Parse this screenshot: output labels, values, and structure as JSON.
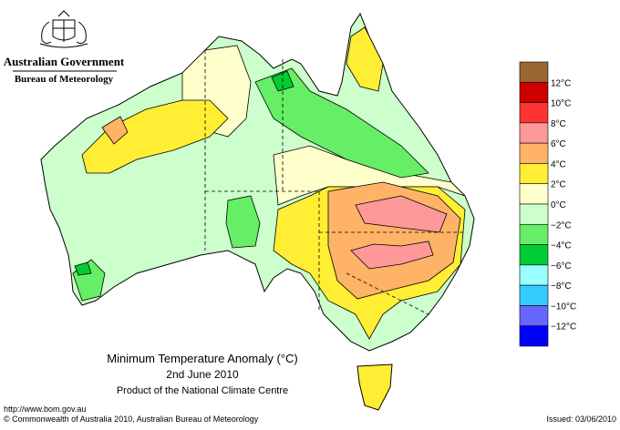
{
  "header": {
    "agency": "Australian Government",
    "bureau": "Bureau of Meteorology"
  },
  "map": {
    "title": "Minimum Temperature Anomaly (°C)",
    "date": "2nd June 2010",
    "product": "Product of the National Climate Centre"
  },
  "legend": {
    "colors": [
      "#996633",
      "#cc0000",
      "#ff3333",
      "#ff9999",
      "#ffb366",
      "#ffee33",
      "#ffffcc",
      "#ccffcc",
      "#66ee66",
      "#00cc33",
      "#99ffff",
      "#33ccff",
      "#6666ff",
      "#0000ff"
    ],
    "labels": [
      "12°C",
      "10°C",
      "8°C",
      "6°C",
      "4°C",
      "2°C",
      "0°C",
      "−2°C",
      "−4°C",
      "−6°C",
      "−8°C",
      "−10°C",
      "−12°C"
    ]
  },
  "footer": {
    "url": "http://www.bom.gov.au",
    "copyright": "© Commonwealth of Australia 2010, Australian Bureau of Meteorology",
    "issued": "Issued: 03/06/2010"
  }
}
